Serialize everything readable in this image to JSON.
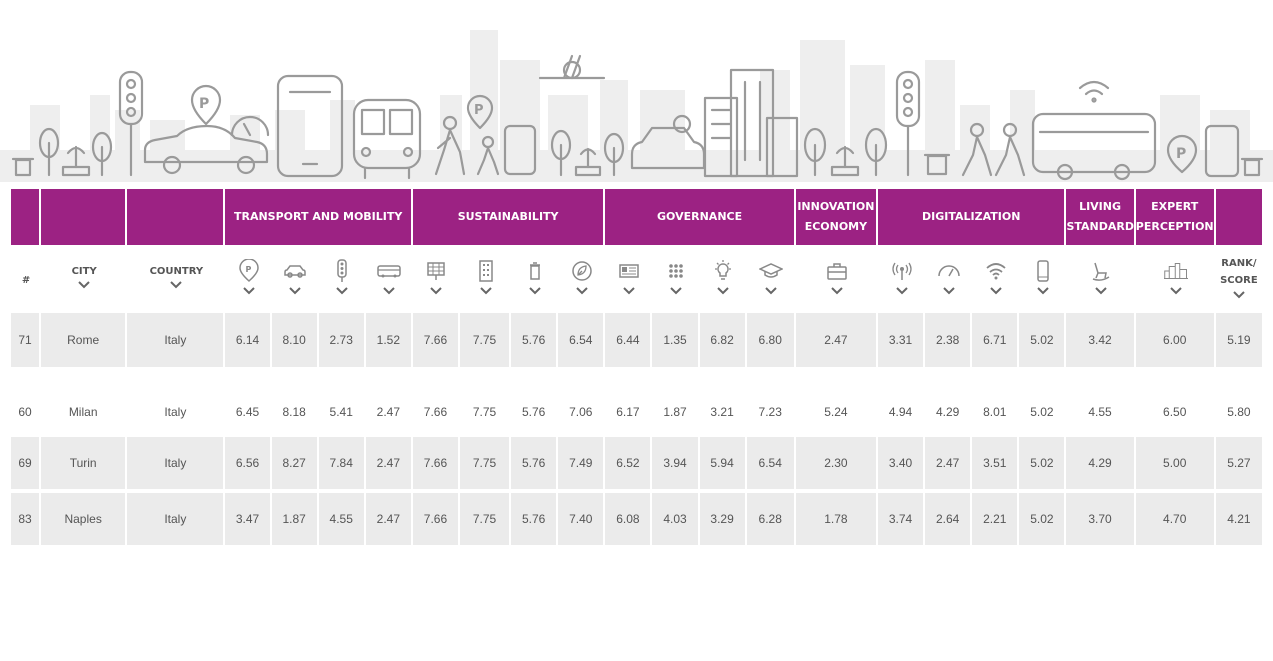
{
  "colors": {
    "header_bg": "#9c2283",
    "row_shade": "#ebebeb",
    "text": "#555555",
    "illustration": "#9a9a9a"
  },
  "categories": {
    "transport": "TRANSPORT AND MOBILITY",
    "sustainability": "SUSTAINABILITY",
    "governance": "GOVERNANCE",
    "innovation": "INNOVATION ECONOMY",
    "digitalization": "DIGITALIZATION",
    "living": "LIVING STANDARD",
    "expert": "EXPERT PERCEPTION"
  },
  "columns": {
    "hash": "#",
    "city": "CITY",
    "country": "COUNTRY",
    "rank_score": "RANK/ SCORE"
  },
  "metric_icons": [
    "parking-icon",
    "car-icon",
    "traffic-light-icon",
    "bus-icon",
    "solar-panel-icon",
    "building-icon",
    "trash-bin-icon",
    "leaf-icon",
    "id-card-icon",
    "grid-dots-icon",
    "lightbulb-icon",
    "graduation-cap-icon",
    "briefcase-icon",
    "antenna-icon",
    "speedometer-icon",
    "wifi-icon",
    "smartphone-icon",
    "rocking-chair-icon",
    "city-skyline-icon"
  ],
  "rows": [
    {
      "rank": "71",
      "city": "Rome",
      "country": "Italy",
      "values": [
        "6.14",
        "8.10",
        "2.73",
        "1.52",
        "7.66",
        "7.75",
        "5.76",
        "6.54",
        "6.44",
        "1.35",
        "6.82",
        "6.80",
        "2.47",
        "3.31",
        "2.38",
        "6.71",
        "5.02",
        "3.42",
        "6.00"
      ],
      "score": "5.19"
    },
    {
      "rank": "60",
      "city": "Milan",
      "country": "Italy",
      "values": [
        "6.45",
        "8.18",
        "5.41",
        "2.47",
        "7.66",
        "7.75",
        "5.76",
        "7.06",
        "6.17",
        "1.87",
        "3.21",
        "7.23",
        "5.24",
        "4.94",
        "4.29",
        "8.01",
        "5.02",
        "4.55",
        "6.50"
      ],
      "score": "5.80"
    },
    {
      "rank": "69",
      "city": "Turin",
      "country": "Italy",
      "values": [
        "6.56",
        "8.27",
        "7.84",
        "2.47",
        "7.66",
        "7.75",
        "5.76",
        "7.49",
        "6.52",
        "3.94",
        "5.94",
        "6.54",
        "2.30",
        "3.40",
        "2.47",
        "3.51",
        "5.02",
        "4.29",
        "5.00"
      ],
      "score": "5.27"
    },
    {
      "rank": "83",
      "city": "Naples",
      "country": "Italy",
      "values": [
        "3.47",
        "1.87",
        "4.55",
        "2.47",
        "7.66",
        "7.75",
        "5.76",
        "7.40",
        "6.08",
        "4.03",
        "3.29",
        "6.28",
        "1.78",
        "3.74",
        "2.64",
        "2.21",
        "5.02",
        "3.70",
        "4.70"
      ],
      "score": "4.21"
    }
  ]
}
